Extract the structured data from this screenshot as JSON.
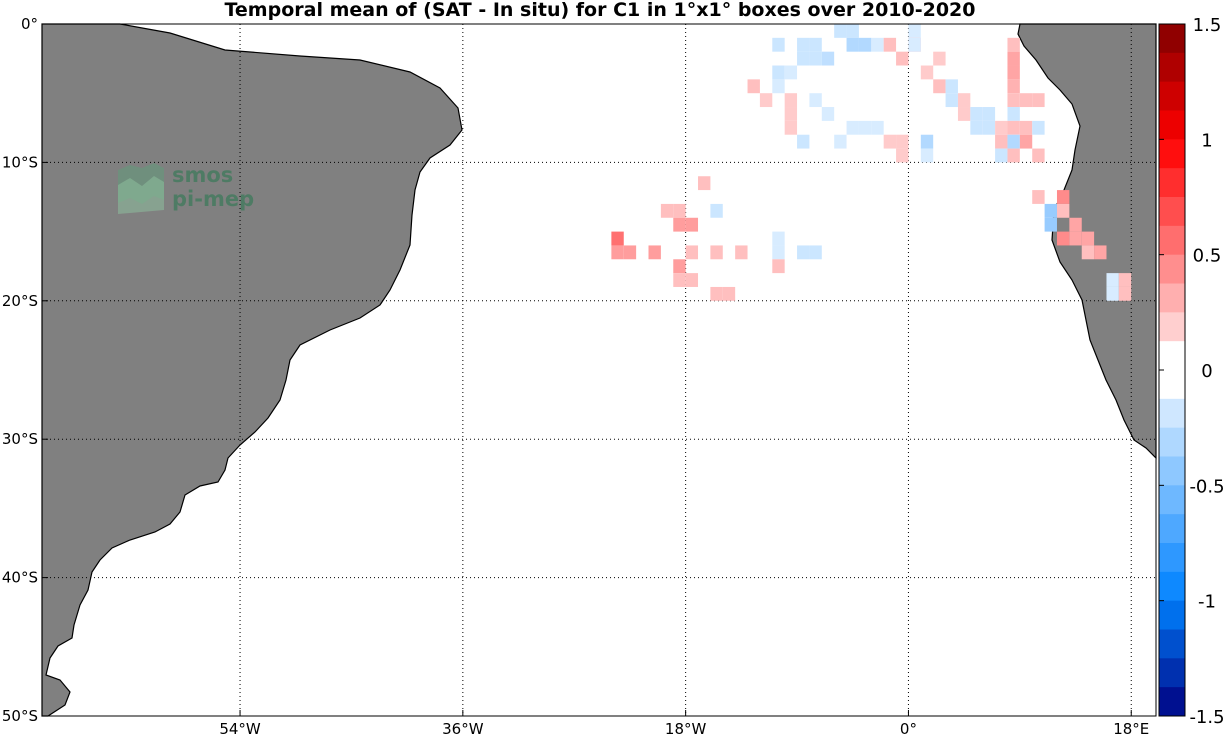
{
  "title": "Temporal mean of (SAT - In situ) for C1 in 1°x1° boxes over 2010-2020",
  "logo": {
    "line1": "smos",
    "line2": "pi-mep"
  },
  "colors": {
    "land": "#808080",
    "coast": "#000000",
    "ocean": "#ffffff"
  },
  "chart_data": {
    "type": "heatmap",
    "title": "Temporal mean of (SAT - In situ) for C1 in 1°x1° boxes over 2010-2020",
    "xlim": [
      -70,
      20
    ],
    "ylim": [
      -50,
      0
    ],
    "x_ticks": [
      {
        "value": -54,
        "label": "54°W"
      },
      {
        "value": -36,
        "label": "36°W"
      },
      {
        "value": -18,
        "label": "18°W"
      },
      {
        "value": 0,
        "label": "0°"
      },
      {
        "value": 18,
        "label": "18°E"
      }
    ],
    "y_ticks": [
      {
        "value": 0,
        "label": "0°"
      },
      {
        "value": -10,
        "label": "10°S"
      },
      {
        "value": -20,
        "label": "20°S"
      },
      {
        "value": -30,
        "label": "30°S"
      },
      {
        "value": -40,
        "label": "40°S"
      },
      {
        "value": -50,
        "label": "50°S"
      }
    ],
    "grid": true,
    "colorbar": {
      "min": -1.5,
      "max": 1.5,
      "levels": 24,
      "ticks": [
        {
          "value": 1.5,
          "label": "1.5"
        },
        {
          "value": 1,
          "label": "1"
        },
        {
          "value": 0.5,
          "label": "0.5"
        },
        {
          "value": 0,
          "label": "0"
        },
        {
          "value": -0.5,
          "label": "-0.5"
        },
        {
          "value": -1,
          "label": "-1"
        },
        {
          "value": -1.5,
          "label": "-1.5"
        }
      ]
    },
    "cells": [
      {
        "lon": -24,
        "lat": -15,
        "v": 0.55
      },
      {
        "lon": -24,
        "lat": -16,
        "v": 0.38
      },
      {
        "lon": -23,
        "lat": -16,
        "v": 0.38
      },
      {
        "lon": -21,
        "lat": -16,
        "v": 0.38
      },
      {
        "lon": -20,
        "lat": -13,
        "v": 0.25
      },
      {
        "lon": -19,
        "lat": -13,
        "v": 0.25
      },
      {
        "lon": -19,
        "lat": -14,
        "v": 0.38
      },
      {
        "lon": -18,
        "lat": -14,
        "v": 0.38
      },
      {
        "lon": -19,
        "lat": -17,
        "v": 0.38
      },
      {
        "lon": -19,
        "lat": -18,
        "v": 0.25
      },
      {
        "lon": -18,
        "lat": -18,
        "v": 0.25
      },
      {
        "lon": -18,
        "lat": -16,
        "v": 0.25
      },
      {
        "lon": -17,
        "lat": -11,
        "v": 0.25
      },
      {
        "lon": -16,
        "lat": -13,
        "v": -0.2
      },
      {
        "lon": -16,
        "lat": -16,
        "v": 0.25
      },
      {
        "lon": -16,
        "lat": -19,
        "v": 0.25
      },
      {
        "lon": -15,
        "lat": -19,
        "v": 0.25
      },
      {
        "lon": -14,
        "lat": -16,
        "v": 0.25
      },
      {
        "lon": -13,
        "lat": -4,
        "v": 0.25
      },
      {
        "lon": -12,
        "lat": -5,
        "v": 0.2
      },
      {
        "lon": -11,
        "lat": -15,
        "v": -0.15
      },
      {
        "lon": -11,
        "lat": -16,
        "v": -0.15
      },
      {
        "lon": -11,
        "lat": -17,
        "v": 0.25
      },
      {
        "lon": -11,
        "lat": -1,
        "v": -0.2
      },
      {
        "lon": -11,
        "lat": -3,
        "v": -0.2
      },
      {
        "lon": -11,
        "lat": -4,
        "v": -0.15
      },
      {
        "lon": -10,
        "lat": -3,
        "v": -0.15
      },
      {
        "lon": -10,
        "lat": -5,
        "v": 0.2
      },
      {
        "lon": -10,
        "lat": -6,
        "v": 0.2
      },
      {
        "lon": -10,
        "lat": -7,
        "v": 0.2
      },
      {
        "lon": -9,
        "lat": -1,
        "v": -0.2
      },
      {
        "lon": -9,
        "lat": -2,
        "v": -0.2
      },
      {
        "lon": -9,
        "lat": -8,
        "v": -0.2
      },
      {
        "lon": -9,
        "lat": -16,
        "v": -0.2
      },
      {
        "lon": -8,
        "lat": -1,
        "v": -0.2
      },
      {
        "lon": -8,
        "lat": -2,
        "v": -0.2
      },
      {
        "lon": -8,
        "lat": -5,
        "v": -0.15
      },
      {
        "lon": -8,
        "lat": -16,
        "v": -0.2
      },
      {
        "lon": -7,
        "lat": -2,
        "v": -0.25
      },
      {
        "lon": -7,
        "lat": -6,
        "v": -0.15
      },
      {
        "lon": -6,
        "lat": 0,
        "v": -0.2
      },
      {
        "lon": -6,
        "lat": -8,
        "v": -0.15
      },
      {
        "lon": -5,
        "lat": 0,
        "v": -0.2
      },
      {
        "lon": -5,
        "lat": -1,
        "v": -0.3
      },
      {
        "lon": -5,
        "lat": -7,
        "v": -0.15
      },
      {
        "lon": -4,
        "lat": -1,
        "v": -0.3
      },
      {
        "lon": -4,
        "lat": -7,
        "v": -0.15
      },
      {
        "lon": -3,
        "lat": -1,
        "v": -0.15
      },
      {
        "lon": -3,
        "lat": -7,
        "v": -0.15
      },
      {
        "lon": -2,
        "lat": -8,
        "v": 0.2
      },
      {
        "lon": -1,
        "lat": -8,
        "v": 0.2
      },
      {
        "lon": -1,
        "lat": -9,
        "v": 0.2
      },
      {
        "lon": 0,
        "lat": 0,
        "v": -0.15
      },
      {
        "lon": 0,
        "lat": -1,
        "v": 0.25
      },
      {
        "lon": -1,
        "lat": -2,
        "v": 0.25
      },
      {
        "lon": 2,
        "lat": -2,
        "v": 0.2
      },
      {
        "lon": 1,
        "lat": -3,
        "v": 0.2
      },
      {
        "lon": 1,
        "lat": -8,
        "v": -0.3
      },
      {
        "lon": 1,
        "lat": -9,
        "v": -0.15
      },
      {
        "lon": 0,
        "lat": -1,
        "v": -0.15
      },
      {
        "lon": -2,
        "lat": -1,
        "v": 0.25
      },
      {
        "lon": 2,
        "lat": -4,
        "v": 0.25
      },
      {
        "lon": 3,
        "lat": -4,
        "v": -0.2
      },
      {
        "lon": 3,
        "lat": -5,
        "v": -0.2
      },
      {
        "lon": 4,
        "lat": -5,
        "v": 0.2
      },
      {
        "lon": 4,
        "lat": -6,
        "v": 0.2
      },
      {
        "lon": 5,
        "lat": -6,
        "v": -0.2
      },
      {
        "lon": 5,
        "lat": -7,
        "v": -0.2
      },
      {
        "lon": 6,
        "lat": -6,
        "v": -0.2
      },
      {
        "lon": 6,
        "lat": -7,
        "v": -0.2
      },
      {
        "lon": 7,
        "lat": -7,
        "v": 0.2
      },
      {
        "lon": 7,
        "lat": -8,
        "v": 0.25
      },
      {
        "lon": 7,
        "lat": -9,
        "v": -0.2
      },
      {
        "lon": 8,
        "lat": -1,
        "v": 0.25
      },
      {
        "lon": 8,
        "lat": -2,
        "v": 0.35
      },
      {
        "lon": 8,
        "lat": -3,
        "v": 0.35
      },
      {
        "lon": 8,
        "lat": -4,
        "v": 0.3
      },
      {
        "lon": 8,
        "lat": -5,
        "v": 0.25
      },
      {
        "lon": 8,
        "lat": -6,
        "v": -0.2
      },
      {
        "lon": 8,
        "lat": -7,
        "v": 0.25
      },
      {
        "lon": 8,
        "lat": -8,
        "v": -0.3
      },
      {
        "lon": 8,
        "lat": -9,
        "v": 0.25
      },
      {
        "lon": 9,
        "lat": -5,
        "v": 0.25
      },
      {
        "lon": 9,
        "lat": -7,
        "v": 0.25
      },
      {
        "lon": 9,
        "lat": -8,
        "v": 0.35
      },
      {
        "lon": 10,
        "lat": -5,
        "v": 0.25
      },
      {
        "lon": 10,
        "lat": -7,
        "v": -0.2
      },
      {
        "lon": 10,
        "lat": -9,
        "v": 0.25
      },
      {
        "lon": 10,
        "lat": -12,
        "v": 0.25
      },
      {
        "lon": 11,
        "lat": -13,
        "v": -0.4
      },
      {
        "lon": 11,
        "lat": -14,
        "v": -0.4
      },
      {
        "lon": 12,
        "lat": -12,
        "v": 0.45
      },
      {
        "lon": 12,
        "lat": -13,
        "v": 0.25
      },
      {
        "lon": 12,
        "lat": -15,
        "v": 0.45
      },
      {
        "lon": 13,
        "lat": -14,
        "v": 0.35
      },
      {
        "lon": 13,
        "lat": -15,
        "v": 0.35
      },
      {
        "lon": 14,
        "lat": -15,
        "v": 0.35
      },
      {
        "lon": 14,
        "lat": -16,
        "v": 0.25
      },
      {
        "lon": 15,
        "lat": -16,
        "v": 0.35
      },
      {
        "lon": 16,
        "lat": -18,
        "v": -0.15
      },
      {
        "lon": 16,
        "lat": -19,
        "v": -0.15
      },
      {
        "lon": 17,
        "lat": -18,
        "v": 0.25
      },
      {
        "lon": 17,
        "lat": -19,
        "v": 0.25
      }
    ]
  }
}
